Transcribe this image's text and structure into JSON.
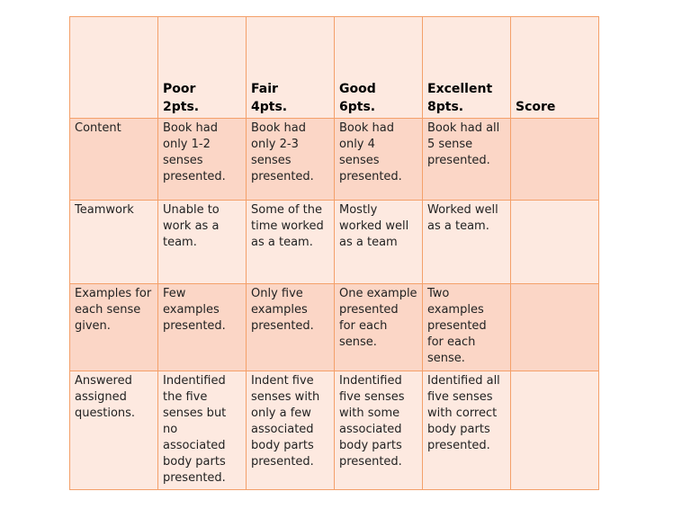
{
  "header": {
    "criteria": "",
    "levels": [
      {
        "name": "Poor",
        "points": "2pts."
      },
      {
        "name": "Fair",
        "points": "4pts."
      },
      {
        "name": "Good",
        "points": "6pts."
      },
      {
        "name": "Excellent",
        "points": "8pts."
      }
    ],
    "score": "Score"
  },
  "rows": [
    {
      "criterion": "Content",
      "cells": [
        "Book had only 1-2 senses presented.",
        "Book had only 2-3 senses presented.",
        "Book had only 4 senses presented.",
        "Book had all 5 sense presented."
      ],
      "score": ""
    },
    {
      "criterion": "Teamwork",
      "cells": [
        "Unable to work as a team.",
        "Some of the time worked as a team.",
        "Mostly worked well as a team",
        "Worked well as a team."
      ],
      "score": ""
    },
    {
      "criterion": "Examples for each sense given.",
      "cells": [
        "Few examples presented.",
        "Only five examples presented.",
        "One example presented for each sense.",
        "Two examples presented for each sense."
      ],
      "score": ""
    },
    {
      "criterion": "Answered assigned questions.",
      "cells": [
        "Indentified the five senses but no associated body parts presented.",
        "Indent five senses with only a few associated body parts presented.",
        "Indentified five senses with some associated body parts presented.",
        "Identified all five senses with correct body parts presented."
      ],
      "score": ""
    }
  ]
}
